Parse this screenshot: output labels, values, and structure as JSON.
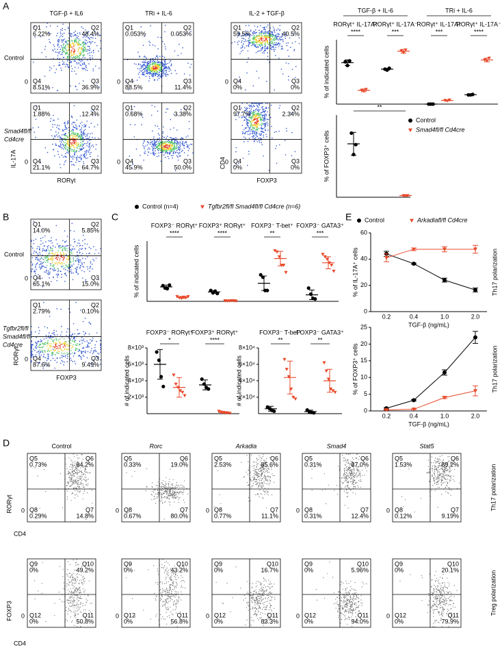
{
  "panel_letters": [
    "A",
    "B",
    "C",
    "D",
    "E"
  ],
  "zero": "0",
  "panel_a": {
    "columns": [
      "TGF-β + IL6",
      "TRi + IL-6",
      "IL-2 + TGF-β"
    ],
    "rows": [
      [
        "Control"
      ],
      [
        "Smad4fl/fl",
        "Cd4cre"
      ]
    ],
    "y_label_1": "IL-17A",
    "x_label_1": "RORγt",
    "y_label_2": "CD4",
    "x_label_2": "FOXP3",
    "plots": [
      [
        [
          [
            "Q1",
            "6.22%"
          ],
          [
            "Q2",
            "48.4%"
          ],
          [
            "Q4",
            "8.51%"
          ],
          [
            "Q3",
            "36.9%"
          ]
        ],
        [
          [
            "Q1",
            "0.053%"
          ],
          [
            "Q2",
            "0.053%"
          ],
          [
            "Q4",
            "88.5%"
          ],
          [
            "Q3",
            "11.4%"
          ]
        ],
        [
          [
            "Q1",
            "59.5%"
          ],
          [
            "Q2",
            "40.5%"
          ],
          [
            "Q4",
            "0%"
          ],
          [
            "Q3",
            "0%"
          ]
        ]
      ],
      [
        [
          [
            "Q1",
            "1.88%"
          ],
          [
            "Q2",
            "12.4%"
          ],
          [
            "Q4",
            "21.1%"
          ],
          [
            "Q3",
            "64.7%"
          ]
        ],
        [
          [
            "Q1",
            "0.68%"
          ],
          [
            "Q2",
            "3.38%"
          ],
          [
            "Q4",
            "45.9%"
          ],
          [
            "Q3",
            "50.0%"
          ]
        ],
        [
          [
            "Q1",
            "97.7%"
          ],
          [
            "Q2",
            "2.34%"
          ],
          [
            "Q4",
            "0%"
          ],
          [
            "Q3",
            "0%"
          ]
        ]
      ]
    ],
    "chart_top": {
      "type": "dot",
      "y_label": "% of indicated cells",
      "ylim": [
        0,
        70
      ],
      "headers": [
        "TGF-β + IL-6",
        "TRi + IL-6"
      ],
      "groups": [
        {
          "label": "RORγt⁺ IL-17A⁺",
          "sig": "****"
        },
        {
          "label": "RORγt⁺ IL-17A⁻",
          "sig": "***"
        },
        {
          "label": "RORγt⁺ IL-17A⁺",
          "sig": "***"
        },
        {
          "label": "RORγt⁺ IL-17A⁻",
          "sig": "****"
        }
      ],
      "series": [
        {
          "name": "Control",
          "color": "#000000",
          "values": [
            45,
            38,
            0,
            10.2
          ],
          "errors": [
            3,
            1,
            0,
            0.3
          ],
          "points": [
            [
              46,
              42,
              47
            ],
            [
              38,
              37,
              39
            ],
            [
              0,
              0,
              0
            ],
            [
              10,
              10,
              10.5
            ]
          ]
        },
        {
          "name": "Smad4fl/fl Cd4cre",
          "color": "#e8492a",
          "values": [
            15,
            57.5,
            4,
            48
          ],
          "errors": [
            1.5,
            2,
            0.5,
            2
          ],
          "points": [
            [
              15,
              14,
              16
            ],
            [
              58,
              56,
              59
            ],
            [
              4,
              3.5,
              4.5
            ],
            [
              48,
              47,
              50
            ]
          ]
        }
      ]
    },
    "chart_bottom": {
      "type": "dot",
      "y_label": "% of FOXP3⁺ cells",
      "ylim": [
        0,
        50
      ],
      "groups": [
        {
          "sig": "**"
        }
      ],
      "series": [
        {
          "color": "#000000",
          "values": [
            32.5
          ],
          "errors": [
            7
          ],
          "points": [
            [
              39,
              26,
              32
            ]
          ]
        },
        {
          "color": "#e8492a",
          "values": [
            1
          ],
          "errors": [
            0.3
          ],
          "points": [
            [
              1,
              1,
              1
            ]
          ]
        }
      ]
    }
  },
  "panel_b": {
    "rows": [
      [
        "Control"
      ],
      [
        "Tgfbr2fl/fl",
        "Smad4fl/fl",
        "Cd4cre"
      ]
    ],
    "y_label": "RORγt",
    "x_label": "FOXP3",
    "plots": [
      [
        [
          "Q1",
          "14.0%"
        ],
        [
          "Q2",
          "5.85%"
        ],
        [
          "Q4",
          "65.1%"
        ],
        [
          "Q3",
          "15.0%"
        ]
      ],
      [
        [
          "Q1",
          "2.79%"
        ],
        [
          "Q2",
          "0.10%"
        ],
        [
          "Q4",
          "87.6%"
        ],
        [
          "Q3",
          "9.49%"
        ]
      ]
    ]
  },
  "panel_c": {
    "chart_top": {
      "type": "dot",
      "y_label": "% of indicated cells",
      "ylim": [
        0,
        50
      ],
      "groups": [
        {
          "label": "FOXP3⁻ RORγt⁺",
          "sig": "****"
        },
        {
          "label": "FOXP3⁺ RORγt⁺",
          "sig": "****"
        },
        {
          "label": "FOXP3⁻ T-bet⁺",
          "sig": "**"
        },
        {
          "label": "FOXP3⁻ GATA3⁺",
          "sig": "***"
        }
      ],
      "series": [
        {
          "name": "Control (n=4)",
          "color": "#000000",
          "values": [
            12,
            7.8,
            15,
            5.4
          ],
          "errors": [
            1.5,
            1.2,
            6,
            4
          ],
          "points": [
            [
              13,
              11,
              10.5,
              13.5
            ],
            [
              9,
              7,
              8.5,
              6.5
            ],
            [
              22,
              20,
              9,
              9
            ],
            [
              11,
              6,
              2.5,
              2
            ]
          ]
        },
        {
          "name": "Tgfbr2fl/fl Smad4fl/fl Cd4cre (n=6)",
          "color": "#e8492a",
          "values": [
            3.3,
            0.4,
            35.5,
            32
          ],
          "errors": [
            0.8,
            0.2,
            6,
            5
          ],
          "points": [
            [
              4,
              3,
              2.5,
              3.5,
              3,
              4
            ],
            [
              0.5,
              0.3,
              0.4,
              0.6,
              0.5,
              0.3
            ],
            [
              42,
              41,
              37,
              30,
              30,
              24
            ],
            [
              39,
              37,
              35,
              32,
              30,
              25
            ]
          ]
        }
      ]
    },
    "chart_left": {
      "type": "dot",
      "y_label": "# of indicated cells",
      "ylim": [
        0,
        8000
      ],
      "yticks": [
        {
          "value": 2000,
          "label": "2×10³"
        },
        {
          "value": 4000,
          "label": "4×10³"
        },
        {
          "value": 6000,
          "label": "6×10³"
        },
        {
          "value": 8000,
          "label": "8×10³"
        }
      ],
      "groups": [
        {
          "label": "FOXP3⁻ RORγt⁺",
          "sig": "*"
        },
        {
          "label": "FOXP3⁺ RORγt⁺",
          "sig": "****"
        }
      ],
      "series": [
        {
          "color": "#000000",
          "values": [
            6000,
            3500
          ],
          "errors": [
            1800,
            600
          ],
          "points": [
            [
              7500,
              6500,
              4500,
              3300
            ],
            [
              4200,
              3600,
              3200,
              3000
            ]
          ]
        },
        {
          "color": "#e8492a",
          "values": [
            3200,
            150
          ],
          "errors": [
            1200,
            100
          ],
          "points": [
            [
              4700,
              3600,
              3200,
              2800,
              2600,
              2200
            ],
            [
              300,
              200,
              150,
              100,
              100,
              50
            ]
          ]
        }
      ]
    },
    "chart_right": {
      "type": "dot",
      "y_label": "# of indicated cells",
      "ylim": [
        0,
        80000
      ],
      "yticks": [
        {
          "value": 20000,
          "label": "2×10⁴"
        },
        {
          "value": 40000,
          "label": "4×10⁴"
        },
        {
          "value": 60000,
          "label": "6×10⁴"
        },
        {
          "value": 80000,
          "label": "8×10⁴"
        }
      ],
      "groups": [
        {
          "label": "FOXP3⁻ T-bet⁺",
          "sig": "**"
        },
        {
          "label": "FOXP3⁻ GATA3⁺",
          "sig": "**"
        }
      ],
      "series": [
        {
          "color": "#000000",
          "values": [
            6000,
            2500
          ],
          "errors": [
            3000,
            1800
          ],
          "points": [
            [
              8000,
              6000,
              4000,
              3000
            ],
            [
              4500,
              2500,
              1500,
              1000
            ]
          ]
        },
        {
          "color": "#e8492a",
          "values": [
            44000,
            40000
          ],
          "errors": [
            20000,
            14000
          ],
          "points": [
            [
              66000,
              54000,
              45000,
              30000,
              20000,
              18000
            ],
            [
              62000,
              52000,
              42000,
              30000,
              28000,
              26000
            ]
          ]
        }
      ]
    }
  },
  "panel_d": {
    "columns": [
      "Control",
      "Rorc",
      "Arkadia",
      "Smad4",
      "Stat5"
    ],
    "side_labels": [
      "Th17 polarization",
      "Treg polarization"
    ],
    "y_labels": [
      "RORγt",
      "FOXP3"
    ],
    "x_label": "CD4",
    "plots": [
      [
        [
          [
            "Q5",
            "0.73%"
          ],
          [
            "Q6",
            "84.2%"
          ],
          [
            "Q8",
            "0.29%"
          ],
          [
            "Q7",
            "14.8%"
          ]
        ],
        [
          [
            "Q5",
            "0.33%"
          ],
          [
            "Q6",
            "19.0%"
          ],
          [
            "Q8",
            "0.67%"
          ],
          [
            "Q7",
            "80.0%"
          ]
        ],
        [
          [
            "Q5",
            "2.53%"
          ],
          [
            "Q6",
            "85.6%"
          ],
          [
            "Q8",
            "0.77%"
          ],
          [
            "Q7",
            "11.1%"
          ]
        ],
        [
          [
            "Q5",
            "0.31%"
          ],
          [
            "Q6",
            "87.0%"
          ],
          [
            "Q8",
            "0.31%"
          ],
          [
            "Q7",
            "12.4%"
          ]
        ],
        [
          [
            "Q5",
            "1.53%"
          ],
          [
            "Q6",
            "89.2%"
          ],
          [
            "Q8",
            "0.12%"
          ],
          [
            "Q7",
            "9.19%"
          ]
        ]
      ],
      [
        [
          [
            "Q9",
            "0%"
          ],
          [
            "Q10",
            "49.2%"
          ],
          [
            "Q12",
            "0%"
          ],
          [
            "Q11",
            "50.8%"
          ]
        ],
        [
          [
            "Q9",
            "0%"
          ],
          [
            "Q10",
            "43.2%"
          ],
          [
            "Q12",
            "0%"
          ],
          [
            "Q11",
            "56.8%"
          ]
        ],
        [
          [
            "Q9",
            "0%"
          ],
          [
            "Q10",
            "16.7%"
          ],
          [
            "Q12",
            "0%"
          ],
          [
            "Q11",
            "83.3%"
          ]
        ],
        [
          [
            "Q9",
            "0%"
          ],
          [
            "Q10",
            "5.96%"
          ],
          [
            "Q12",
            "0%"
          ],
          [
            "Q11",
            "94.0%"
          ]
        ],
        [
          [
            "Q9",
            "0%"
          ],
          [
            "Q10",
            "20.1%"
          ],
          [
            "Q12",
            "0%"
          ],
          [
            "Q11",
            "79.9%"
          ]
        ]
      ]
    ]
  },
  "panel_e": {
    "chart_top": {
      "type": "line",
      "y_label": "% of IL-17A⁺ cells",
      "side_label": "Th17 polarization",
      "x_label": "TGF-β (ng/mL)",
      "categories": [
        "0.2",
        "0.4",
        "1.0",
        "2.0"
      ],
      "ylim": [
        0,
        60
      ],
      "yticks": [
        0,
        20,
        40,
        60
      ],
      "series": [
        {
          "name": "Control",
          "color": "#000000",
          "values": [
            44,
            36.5,
            24,
            16.5
          ],
          "errors": [
            2,
            0.5,
            1.5,
            1.5
          ]
        },
        {
          "name": "Arkadiafl/fl Cd4cre",
          "color": "#e8492a",
          "values": [
            41,
            47.5,
            47.5,
            47.5
          ],
          "errors": [
            3,
            1,
            2,
            3
          ]
        }
      ]
    },
    "chart_bottom": {
      "type": "line",
      "y_label": "% of FOXP3⁺ cells",
      "side_label": "Th17 polarization",
      "x_label": "TGF-β (ng/mL)",
      "categories": [
        "0.2",
        "0.4",
        "1.0",
        "2.0"
      ],
      "ylim": [
        0,
        25
      ],
      "yticks": [
        0,
        5,
        10,
        15,
        20,
        25
      ],
      "series": [
        {
          "color": "#000000",
          "values": [
            0.8,
            3.2,
            11.5,
            22
          ],
          "errors": [
            0.2,
            0.2,
            0.8,
            1.8
          ]
        },
        {
          "color": "#e8492a",
          "values": [
            0.3,
            0.5,
            4,
            6
          ],
          "errors": [
            0.1,
            0.1,
            0.3,
            1.5
          ]
        }
      ]
    }
  }
}
